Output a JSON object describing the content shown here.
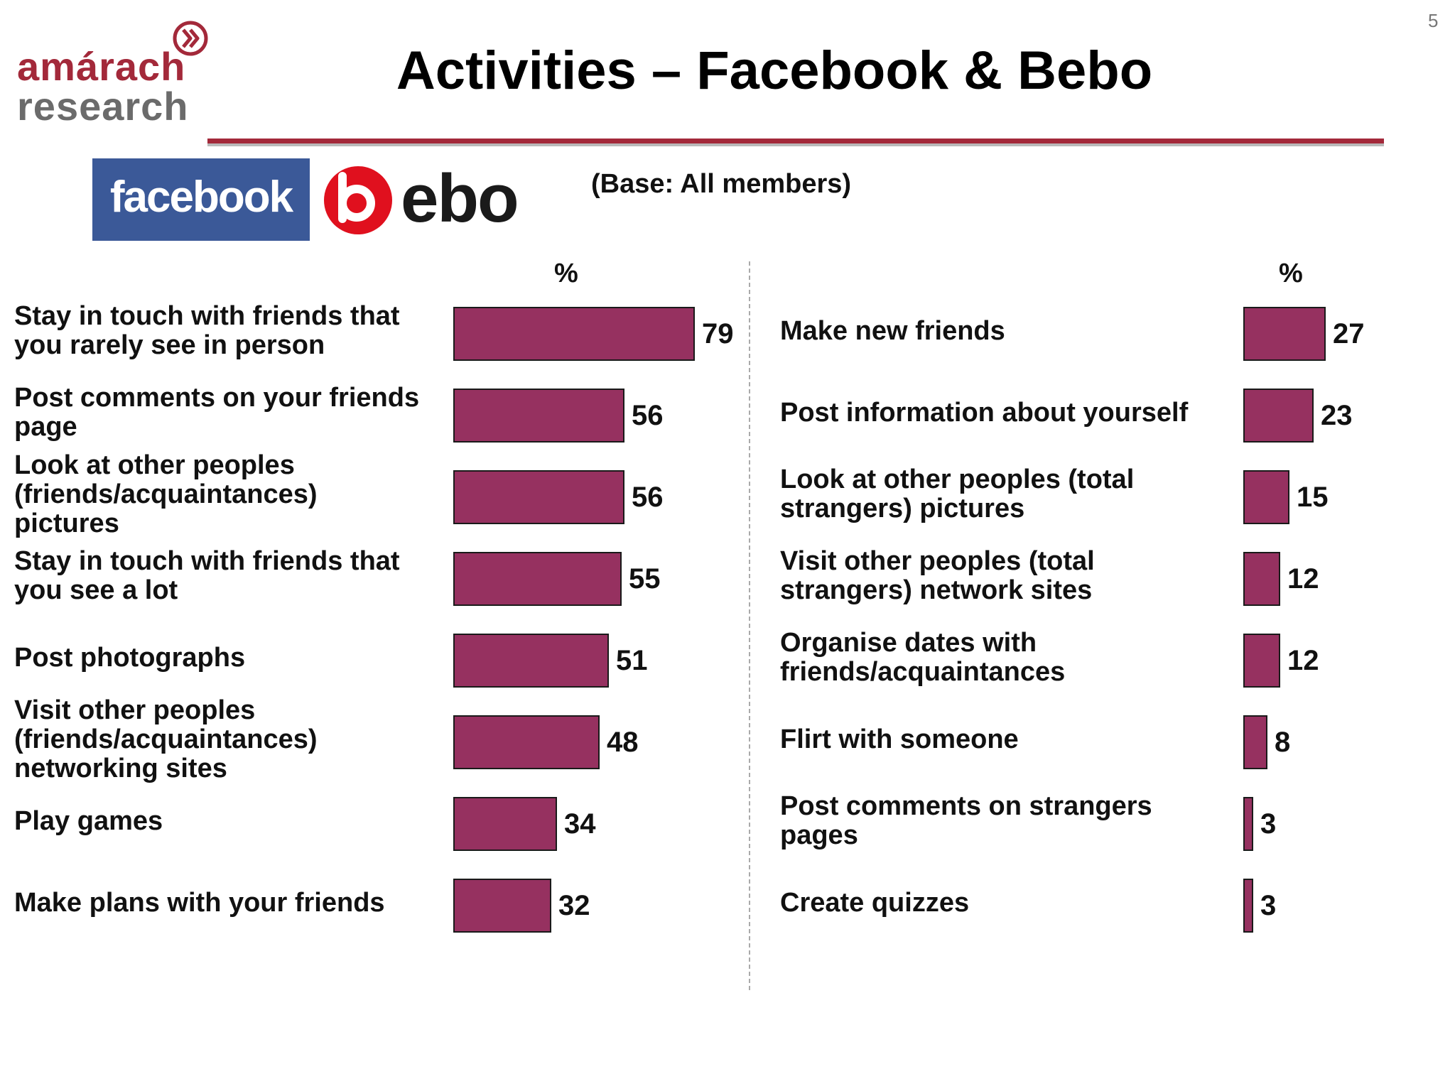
{
  "page": {
    "slide_number": "5",
    "title": "Activities – Facebook & Bebo",
    "base_note": "(Base:  All members)"
  },
  "logos": {
    "amarach": [
      "amárach",
      "research"
    ],
    "facebook": "facebook",
    "bebo": "ebo"
  },
  "colors": {
    "bar": "#963160",
    "brand_red": "#a3293a",
    "facebook_blue": "#3b5998",
    "bebo_red": "#e0101e"
  },
  "chart_data": [
    {
      "type": "bar",
      "orientation": "horizontal",
      "unit_label": "%",
      "xlim": [
        0,
        100
      ],
      "categories": [
        [
          "Stay in touch with friends that",
          "you rarely see in person"
        ],
        [
          "Post comments on your friends",
          "page"
        ],
        [
          "Look at other peoples",
          "(friends/acquaintances)",
          "pictures"
        ],
        [
          "Stay in touch with friends that",
          "you see a lot"
        ],
        [
          "Post photographs"
        ],
        [
          "Visit other peoples",
          "(friends/acquaintances)",
          "networking sites"
        ],
        [
          "Play games"
        ],
        [
          "Make plans with your friends"
        ]
      ],
      "values": [
        79,
        56,
        56,
        55,
        51,
        48,
        34,
        32
      ],
      "grid": false,
      "legend": "none"
    },
    {
      "type": "bar",
      "orientation": "horizontal",
      "unit_label": "%",
      "xlim": [
        0,
        100
      ],
      "categories": [
        [
          "Make new friends"
        ],
        [
          "Post information about yourself"
        ],
        [
          "Look at other peoples (total",
          "strangers) pictures"
        ],
        [
          "Visit other peoples (total",
          "strangers) network sites"
        ],
        [
          "Organise dates with",
          "friends/acquaintances"
        ],
        [
          "Flirt with someone"
        ],
        [
          "Post comments on strangers",
          "pages"
        ],
        [
          "Create quizzes"
        ]
      ],
      "values": [
        27,
        23,
        15,
        12,
        12,
        8,
        3,
        3
      ],
      "grid": false,
      "legend": "none"
    }
  ]
}
